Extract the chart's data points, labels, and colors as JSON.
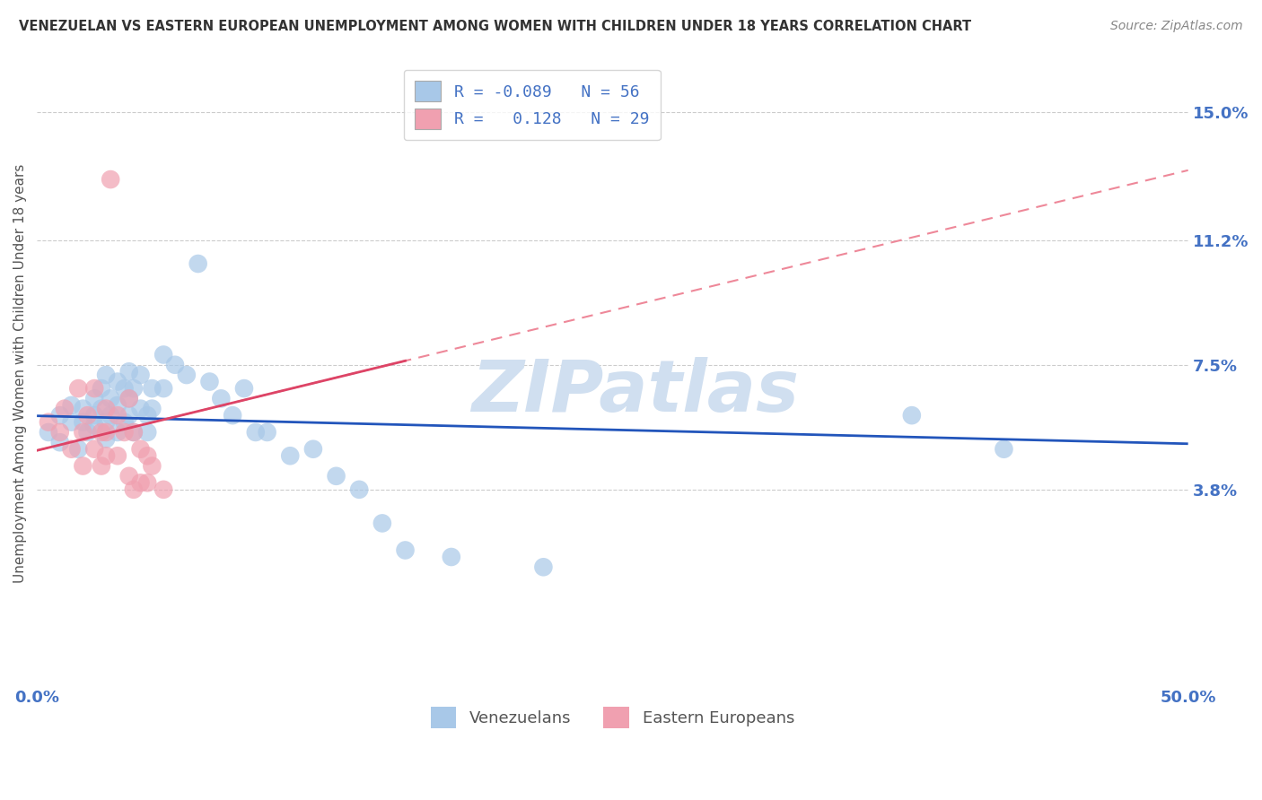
{
  "title": "VENEZUELAN VS EASTERN EUROPEAN UNEMPLOYMENT AMONG WOMEN WITH CHILDREN UNDER 18 YEARS CORRELATION CHART",
  "source": "Source: ZipAtlas.com",
  "ylabel": "Unemployment Among Women with Children Under 18 years",
  "y_ticks": [
    0.038,
    0.075,
    0.112,
    0.15
  ],
  "y_tick_labels": [
    "3.8%",
    "7.5%",
    "11.2%",
    "15.0%"
  ],
  "x_min": 0.0,
  "x_max": 0.5,
  "y_min": -0.02,
  "y_max": 0.165,
  "venezuelan_color": "#a8c8e8",
  "eastern_european_color": "#f0a0b0",
  "venezuelan_trend_color": "#2255bb",
  "eastern_european_trend_color": "#dd4466",
  "eastern_european_dashed_color": "#ee8899",
  "watermark_text": "ZIPatlas",
  "watermark_color": "#d0dff0",
  "background_color": "#ffffff",
  "venezuelan_points": [
    [
      0.005,
      0.055
    ],
    [
      0.01,
      0.06
    ],
    [
      0.01,
      0.052
    ],
    [
      0.015,
      0.058
    ],
    [
      0.015,
      0.063
    ],
    [
      0.018,
      0.05
    ],
    [
      0.02,
      0.058
    ],
    [
      0.02,
      0.062
    ],
    [
      0.022,
      0.055
    ],
    [
      0.025,
      0.065
    ],
    [
      0.025,
      0.06
    ],
    [
      0.025,
      0.057
    ],
    [
      0.028,
      0.068
    ],
    [
      0.028,
      0.062
    ],
    [
      0.03,
      0.072
    ],
    [
      0.03,
      0.058
    ],
    [
      0.03,
      0.053
    ],
    [
      0.032,
      0.065
    ],
    [
      0.032,
      0.06
    ],
    [
      0.035,
      0.07
    ],
    [
      0.035,
      0.063
    ],
    [
      0.035,
      0.055
    ],
    [
      0.038,
      0.068
    ],
    [
      0.038,
      0.058
    ],
    [
      0.04,
      0.073
    ],
    [
      0.04,
      0.065
    ],
    [
      0.04,
      0.06
    ],
    [
      0.042,
      0.068
    ],
    [
      0.042,
      0.055
    ],
    [
      0.045,
      0.072
    ],
    [
      0.045,
      0.062
    ],
    [
      0.048,
      0.06
    ],
    [
      0.048,
      0.055
    ],
    [
      0.05,
      0.068
    ],
    [
      0.05,
      0.062
    ],
    [
      0.055,
      0.078
    ],
    [
      0.055,
      0.068
    ],
    [
      0.06,
      0.075
    ],
    [
      0.065,
      0.072
    ],
    [
      0.07,
      0.105
    ],
    [
      0.075,
      0.07
    ],
    [
      0.08,
      0.065
    ],
    [
      0.085,
      0.06
    ],
    [
      0.09,
      0.068
    ],
    [
      0.095,
      0.055
    ],
    [
      0.1,
      0.055
    ],
    [
      0.11,
      0.048
    ],
    [
      0.12,
      0.05
    ],
    [
      0.13,
      0.042
    ],
    [
      0.14,
      0.038
    ],
    [
      0.15,
      0.028
    ],
    [
      0.16,
      0.02
    ],
    [
      0.18,
      0.018
    ],
    [
      0.22,
      0.015
    ],
    [
      0.38,
      0.06
    ],
    [
      0.42,
      0.05
    ]
  ],
  "eastern_european_points": [
    [
      0.005,
      0.058
    ],
    [
      0.01,
      0.055
    ],
    [
      0.012,
      0.062
    ],
    [
      0.015,
      0.05
    ],
    [
      0.018,
      0.068
    ],
    [
      0.02,
      0.055
    ],
    [
      0.02,
      0.045
    ],
    [
      0.022,
      0.06
    ],
    [
      0.025,
      0.068
    ],
    [
      0.025,
      0.05
    ],
    [
      0.028,
      0.055
    ],
    [
      0.028,
      0.045
    ],
    [
      0.03,
      0.062
    ],
    [
      0.03,
      0.055
    ],
    [
      0.03,
      0.048
    ],
    [
      0.032,
      0.13
    ],
    [
      0.035,
      0.06
    ],
    [
      0.035,
      0.048
    ],
    [
      0.038,
      0.055
    ],
    [
      0.04,
      0.065
    ],
    [
      0.04,
      0.042
    ],
    [
      0.042,
      0.055
    ],
    [
      0.042,
      0.038
    ],
    [
      0.045,
      0.05
    ],
    [
      0.045,
      0.04
    ],
    [
      0.048,
      0.048
    ],
    [
      0.048,
      0.04
    ],
    [
      0.05,
      0.045
    ],
    [
      0.055,
      0.038
    ]
  ],
  "bottom_legend_labels": [
    "Venezuelans",
    "Eastern Europeans"
  ]
}
